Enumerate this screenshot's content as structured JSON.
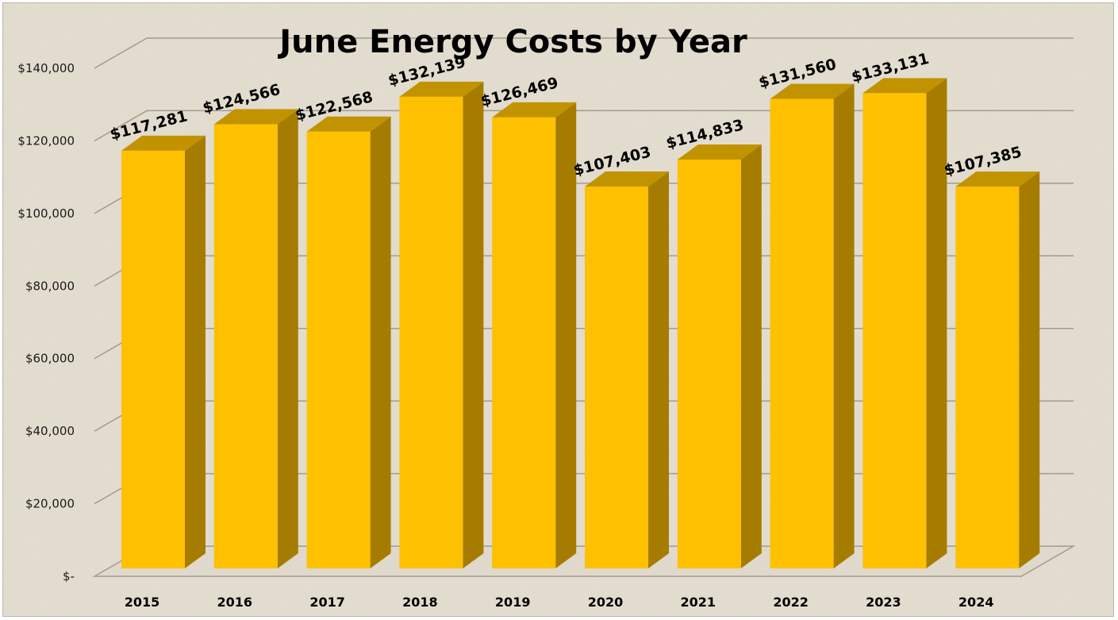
{
  "chart_data": {
    "type": "bar",
    "title": "June Energy Costs by Year",
    "categories": [
      "2015",
      "2016",
      "2017",
      "2018",
      "2019",
      "2020",
      "2021",
      "2022",
      "2023",
      "2024"
    ],
    "values": [
      117281,
      124566,
      122568,
      132139,
      126469,
      107403,
      114833,
      131560,
      133131,
      107385
    ],
    "data_labels": [
      "$117,281",
      "$124,566",
      "$122,568",
      "$132,139",
      "$126,469",
      "$107,403",
      "$114,833",
      "$131,560",
      "$133,131",
      "$107,385"
    ],
    "y_ticks": [
      {
        "value": 0,
        "label": "$-"
      },
      {
        "value": 20000,
        "label": "$20,000"
      },
      {
        "value": 40000,
        "label": "$40,000"
      },
      {
        "value": 60000,
        "label": "$60,000"
      },
      {
        "value": 80000,
        "label": "$80,000"
      },
      {
        "value": 100000,
        "label": "$100,000"
      },
      {
        "value": 120000,
        "label": "$120,000"
      },
      {
        "value": 140000,
        "label": "$140,000"
      }
    ],
    "ylim": [
      0,
      140000
    ],
    "xlabel": "",
    "ylabel": "",
    "grid": true,
    "legend": "none",
    "style": "3d-column",
    "colors": {
      "bar_front": "#ffc000",
      "bar_top": "#c29300",
      "bar_side": "#a67c00",
      "background": "#e6e0d3"
    }
  }
}
